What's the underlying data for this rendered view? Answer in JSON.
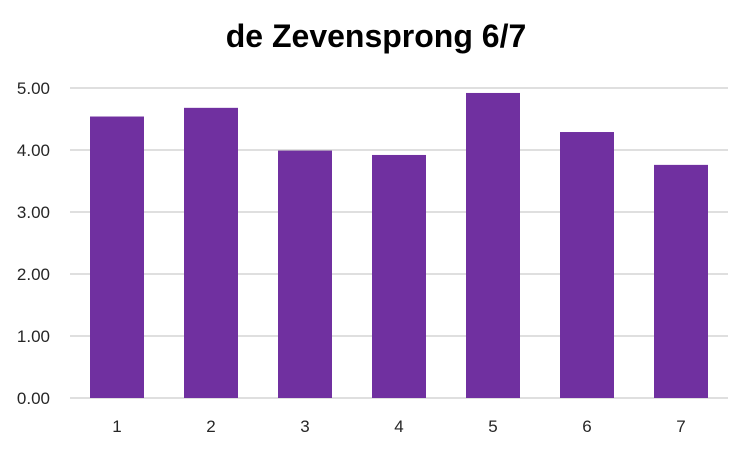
{
  "chart_data": {
    "type": "bar",
    "title": "de Zevensprong 6/7",
    "categories": [
      "1",
      "2",
      "3",
      "4",
      "5",
      "6",
      "7"
    ],
    "values": [
      4.54,
      4.68,
      3.99,
      3.92,
      4.92,
      4.29,
      3.76
    ],
    "xlabel": "",
    "ylabel": "",
    "ylim": [
      0,
      5
    ],
    "yticks": [
      "0.00",
      "1.00",
      "2.00",
      "3.00",
      "4.00",
      "5.00"
    ],
    "grid": true,
    "legend": "none",
    "bar_color": "#7030A0",
    "grid_color": "#BFBFBF"
  }
}
